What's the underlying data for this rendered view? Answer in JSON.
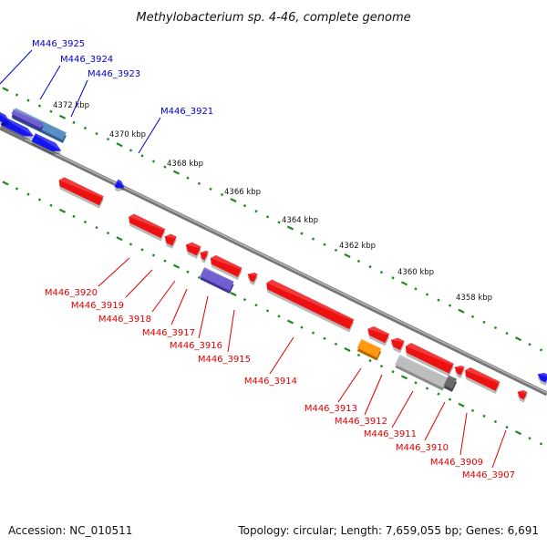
{
  "title": "Methylobacterium sp. 4-46, complete genome",
  "footer": {
    "accession": "Accession: NC_010511",
    "topology": "Topology: circular; Length: 7,659,055 bp; Genes: 6,691"
  },
  "colors": {
    "backbone": "#888888",
    "tick": "#1a8a1a",
    "forward_label": "#0000cc",
    "reverse_label": "#dd0000",
    "forward_gene": "#1515ee",
    "reverse_gene": "#ee1111",
    "rna_gene": "#7060d0",
    "pseudo_gene": "#ff9a10",
    "other_gene": "#bdbdbd",
    "highlight_gene": "#5b8ec2"
  },
  "kbp_labels": [
    "4372 kbp",
    "4370 kbp",
    "4368 kbp",
    "4366 kbp",
    "4364 kbp",
    "4362 kbp",
    "4360 kbp",
    "4358 kbp"
  ],
  "forward_labels": [
    "M446_3925",
    "M446_3924",
    "M446_3923",
    "M446_3921"
  ],
  "reverse_labels": [
    "M446_3920",
    "M446_3919",
    "M446_3918",
    "M446_3917",
    "M446_3916",
    "M446_3915",
    "M446_3914",
    "M446_3913",
    "M446_3912",
    "M446_3911",
    "M446_3910",
    "M446_3909",
    "M446_3907"
  ]
}
